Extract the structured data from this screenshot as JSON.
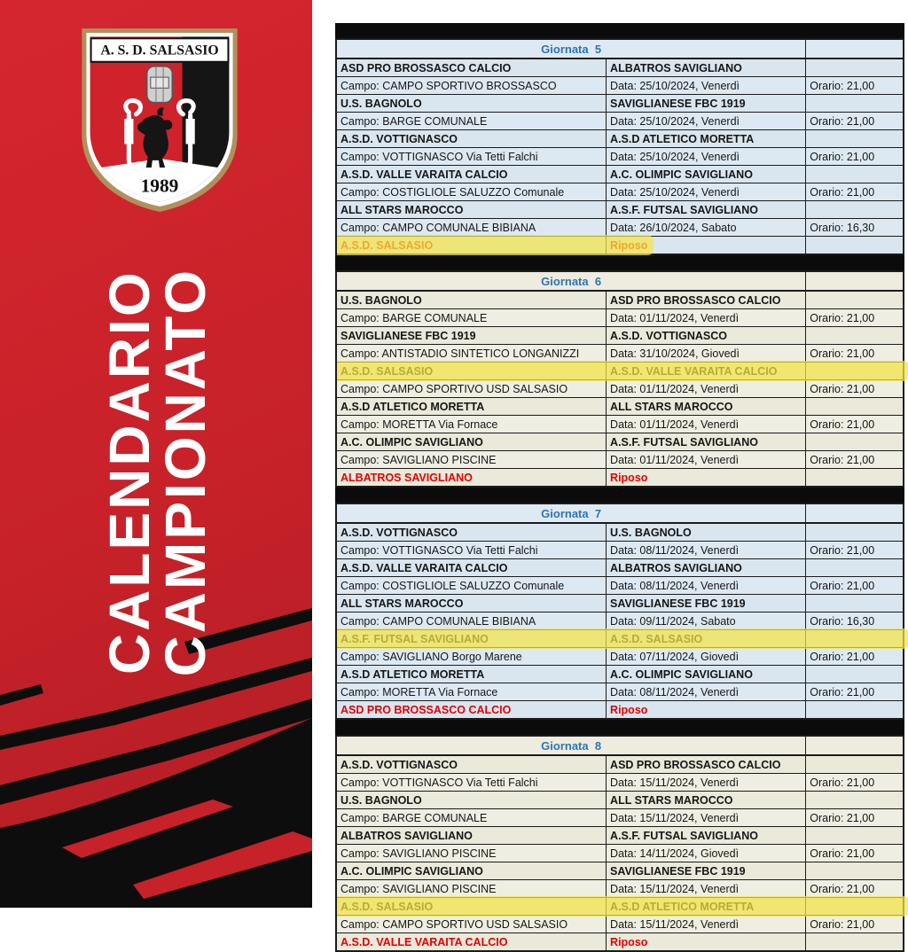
{
  "left_panel": {
    "bg_color": "#c72129",
    "title_lines": [
      "CALENDARIO",
      "CAMPIONATO"
    ],
    "badge": {
      "club_name": "A. S. D. SALSASIO",
      "year": "1989",
      "colors": {
        "red": "#d0222b",
        "black": "#151515",
        "gold": "#b2905d"
      }
    }
  },
  "table_colors": {
    "blue_row_bg": "#d9e6f0",
    "cream_row_bg": "#eae9da",
    "header_text": "#2e74b5",
    "red_text": "#e60000",
    "highlight_yellow": "#f4e446",
    "separator_black": "#0b0b0b"
  },
  "rounds": [
    {
      "title": "Giornata  5",
      "theme": "blue",
      "matches": [
        {
          "home": "ASD PRO BROSSASCO CALCIO",
          "away": "ALBATROS SAVIGLIANO",
          "campo": "Campo: CAMPO SPORTIVO BROSSASCO",
          "data": "Data: 25/10/2024, Venerdì",
          "orario": "Orario: 21,00",
          "highlight": false
        },
        {
          "home": "U.S. BAGNOLO",
          "away": "SAVIGLIANESE FBC 1919",
          "campo": "Campo: BARGE COMUNALE",
          "data": "Data: 25/10/2024, Venerdì",
          "orario": "Orario: 21,00",
          "highlight": false
        },
        {
          "home": "A.S.D. VOTTIGNASCO",
          "away": "A.S.D ATLETICO MORETTA",
          "campo": "Campo: VOTTIGNASCO Via Tetti Falchi",
          "data": "Data: 25/10/2024, Venerdì",
          "orario": "Orario: 21,00",
          "highlight": false
        },
        {
          "home": "A.S.D. VALLE VARAITA CALCIO",
          "away": "A.C. OLIMPIC SAVIGLIANO",
          "campo": "Campo: COSTIGLIOLE SALUZZO Comunale",
          "data": "Data: 25/10/2024, Venerdì",
          "orario": "Orario: 21,00",
          "highlight": false
        },
        {
          "home": "ALL STARS MAROCCO",
          "away": "A.S.F. FUTSAL SAVIGLIANO",
          "campo": "Campo: CAMPO COMUNALE BIBIANA",
          "data": "Data: 26/10/2024, Sabato",
          "orario": "Orario: 16,30",
          "highlight": false
        }
      ],
      "riposo": {
        "team": "A.S.D. SALSASIO",
        "label": "Riposo",
        "red": true,
        "highlight": "partial"
      }
    },
    {
      "title": "Giornata  6",
      "theme": "cream",
      "matches": [
        {
          "home": "U.S. BAGNOLO",
          "away": "ASD PRO BROSSASCO CALCIO",
          "campo": "Campo: BARGE COMUNALE",
          "data": "Data: 01/11/2024, Venerdì",
          "orario": "Orario: 21,00",
          "highlight": false
        },
        {
          "home": "SAVIGLIANESE FBC 1919",
          "away": "A.S.D. VOTTIGNASCO",
          "campo": "Campo: ANTISTADIO SINTETICO LONGANIZZI",
          "data": "Data: 31/10/2024, Giovedì",
          "orario": "Orario: 21,00",
          "highlight": false
        },
        {
          "home": "A.S.D. SALSASIO",
          "away": "A.S.D. VALLE VARAITA CALCIO",
          "campo": "Campo: CAMPO SPORTIVO USD SALSASIO",
          "data": "Data: 01/11/2024, Venerdì",
          "orario": "Orario: 21,00",
          "highlight": true
        },
        {
          "home": "A.S.D ATLETICO MORETTA",
          "away": "ALL STARS MAROCCO",
          "campo": "Campo: MORETTA Via Fornace",
          "data": "Data: 01/11/2024, Venerdì",
          "orario": "Orario: 21,00",
          "highlight": false
        },
        {
          "home": "A.C. OLIMPIC SAVIGLIANO",
          "away": "A.S.F. FUTSAL SAVIGLIANO",
          "campo": "Campo: SAVIGLIANO PISCINE",
          "data": "Data: 01/11/2024, Venerdì",
          "orario": "Orario: 21,00",
          "highlight": false
        }
      ],
      "riposo": {
        "team": "ALBATROS SAVIGLIANO",
        "label": "Riposo",
        "red": true,
        "highlight": "none"
      }
    },
    {
      "title": "Giornata  7",
      "theme": "blue",
      "matches": [
        {
          "home": "A.S.D. VOTTIGNASCO",
          "away": "U.S. BAGNOLO",
          "campo": "Campo: VOTTIGNASCO Via Tetti Falchi",
          "data": "Data: 08/11/2024, Venerdì",
          "orario": "Orario: 21,00",
          "highlight": false
        },
        {
          "home": "A.S.D. VALLE VARAITA CALCIO",
          "away": "ALBATROS SAVIGLIANO",
          "campo": "Campo: COSTIGLIOLE SALUZZO Comunale",
          "data": "Data: 08/11/2024, Venerdì",
          "orario": "Orario: 21,00",
          "highlight": false
        },
        {
          "home": "ALL STARS MAROCCO",
          "away": "SAVIGLIANESE FBC 1919",
          "campo": "Campo: CAMPO COMUNALE BIBIANA",
          "data": "Data: 09/11/2024, Sabato",
          "orario": "Orario: 16,30",
          "highlight": false
        },
        {
          "home": "A.S.F. FUTSAL SAVIGLIANO",
          "away": "A.S.D. SALSASIO",
          "campo": "Campo: SAVIGLIANO Borgo Marene",
          "data": "Data: 07/11/2024, Giovedì",
          "orario": "Orario: 21,00",
          "highlight": true
        },
        {
          "home": "A.S.D ATLETICO MORETTA",
          "away": "A.C. OLIMPIC SAVIGLIANO",
          "campo": "Campo: MORETTA Via Fornace",
          "data": "Data: 08/11/2024, Venerdì",
          "orario": "Orario: 21,00",
          "highlight": false
        }
      ],
      "riposo": {
        "team": "ASD PRO BROSSASCO CALCIO",
        "label": "Riposo",
        "red": true,
        "highlight": "none"
      }
    },
    {
      "title": "Giornata  8",
      "theme": "cream",
      "matches": [
        {
          "home": "A.S.D. VOTTIGNASCO",
          "away": "ASD PRO BROSSASCO CALCIO",
          "campo": "Campo: VOTTIGNASCO Via Tetti Falchi",
          "data": "Data: 15/11/2024, Venerdì",
          "orario": "Orario: 21,00",
          "highlight": false
        },
        {
          "home": "U.S. BAGNOLO",
          "away": "ALL STARS MAROCCO",
          "campo": "Campo: BARGE COMUNALE",
          "data": "Data: 15/11/2024, Venerdì",
          "orario": "Orario: 21,00",
          "highlight": false
        },
        {
          "home": "ALBATROS SAVIGLIANO",
          "away": "A.S.F. FUTSAL SAVIGLIANO",
          "campo": "Campo: SAVIGLIANO PISCINE",
          "data": "Data: 14/11/2024, Giovedì",
          "orario": "Orario: 21,00",
          "highlight": false
        },
        {
          "home": "A.C. OLIMPIC SAVIGLIANO",
          "away": "SAVIGLIANESE FBC 1919",
          "campo": "Campo: SAVIGLIANO PISCINE",
          "data": "Data: 15/11/2024, Venerdì",
          "orario": "Orario: 21,00",
          "highlight": false
        },
        {
          "home": "A.S.D. SALSASIO",
          "away": "A.S.D ATLETICO MORETTA",
          "campo": "Campo: CAMPO SPORTIVO USD SALSASIO",
          "data": "Data: 15/11/2024, Venerdì",
          "orario": "Orario: 21,00",
          "highlight": true
        }
      ],
      "riposo": {
        "team": "A.S.D. VALLE VARAITA CALCIO",
        "label": "Riposo",
        "red": true,
        "highlight": "none"
      }
    }
  ]
}
